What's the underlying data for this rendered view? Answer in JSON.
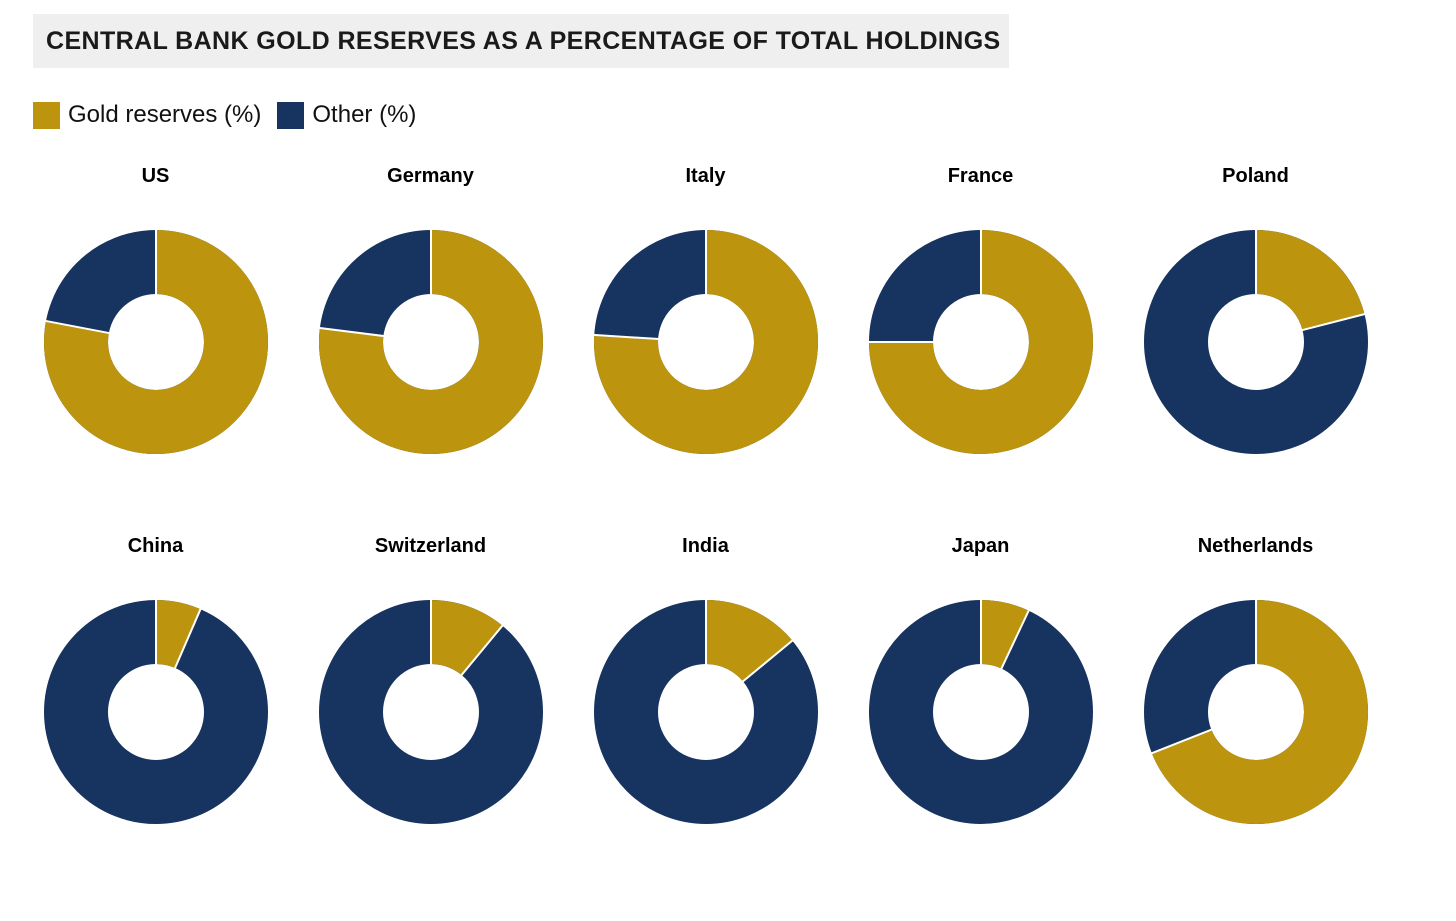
{
  "title": "CENTRAL BANK GOLD RESERVES AS A PERCENTAGE OF TOTAL HOLDINGS",
  "legend": [
    {
      "label": "Gold reserves (%)",
      "color": "#bd940e"
    },
    {
      "label": "Other (%)",
      "color": "#17335f"
    }
  ],
  "colors": {
    "gold": "#bd940e",
    "navy": "#17335f",
    "title_bg": "#efefef",
    "separator": "#ffffff"
  },
  "chart_data": {
    "type": "pie",
    "variant": "donut-small-multiples",
    "title": "CENTRAL BANK GOLD RESERVES AS A PERCENTAGE OF TOTAL HOLDINGS",
    "legend_entries": [
      "Gold reserves (%)",
      "Other (%)"
    ],
    "legend_position": "top-left",
    "series_colors": {
      "Gold reserves (%)": "#bd940e",
      "Other (%)": "#17335f"
    },
    "arc_layout": "gold segment starts at 12 o'clock and sweeps clockwise, remainder is Other",
    "grid": {
      "rows": 2,
      "cols": 5
    },
    "charts": [
      {
        "country": "US",
        "gold_pct": 78,
        "other_pct": 22
      },
      {
        "country": "Germany",
        "gold_pct": 77,
        "other_pct": 23
      },
      {
        "country": "Italy",
        "gold_pct": 76,
        "other_pct": 24
      },
      {
        "country": "France",
        "gold_pct": 75,
        "other_pct": 25
      },
      {
        "country": "Poland",
        "gold_pct": 21,
        "other_pct": 79
      },
      {
        "country": "China",
        "gold_pct": 6.5,
        "other_pct": 93.5
      },
      {
        "country": "Switzerland",
        "gold_pct": 11,
        "other_pct": 89
      },
      {
        "country": "India",
        "gold_pct": 14,
        "other_pct": 86
      },
      {
        "country": "Japan",
        "gold_pct": 7,
        "other_pct": 93
      },
      {
        "country": "Netherlands",
        "gold_pct": 69,
        "other_pct": 31
      }
    ]
  }
}
